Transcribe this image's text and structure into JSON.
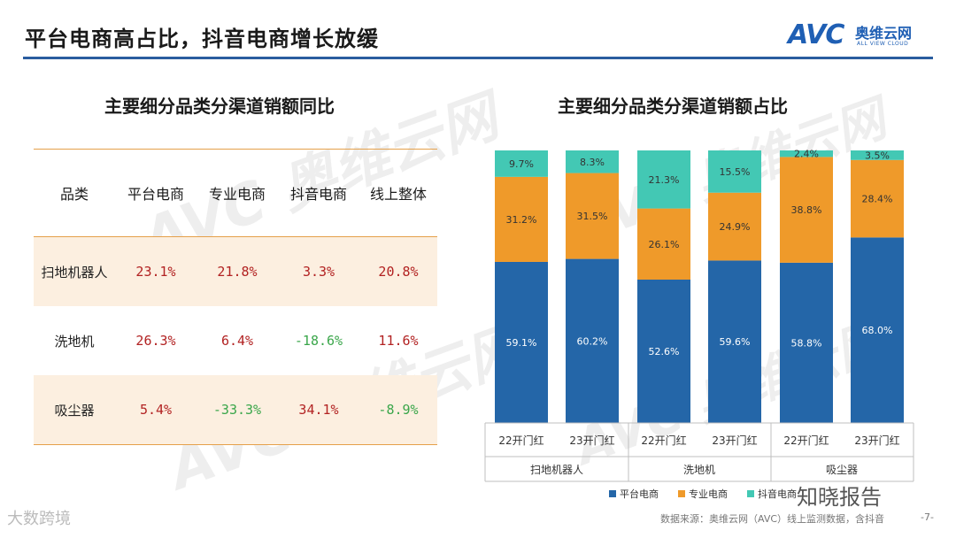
{
  "page": {
    "title": "平台电商高占比，抖音电商增长放缓",
    "logo_mark": "AVC",
    "logo_cn": "奥维云网",
    "logo_en": "ALL VIEW CLOUD",
    "footer_source": "数据来源：奥维云网（AVC）线上监测数据，含抖音",
    "page_number": "-7-",
    "watermark_left": "大数跨境",
    "watermark_right": "知晓报告"
  },
  "table": {
    "title": "主要细分品类分渠道销额同比",
    "headers": [
      "品类",
      "平台电商",
      "专业电商",
      "抖音电商",
      "线上整体"
    ],
    "rows": [
      {
        "category": "扫地机器人",
        "values": [
          "23.1%",
          "21.8%",
          "3.3%",
          "20.8%"
        ]
      },
      {
        "category": "洗地机",
        "values": [
          "26.3%",
          "6.4%",
          "-18.6%",
          "11.6%"
        ]
      },
      {
        "category": "吸尘器",
        "values": [
          "5.4%",
          "-33.3%",
          "34.1%",
          "-8.9%"
        ]
      }
    ]
  },
  "chart_data": {
    "type": "bar",
    "stacked": true,
    "percent": true,
    "title": "主要细分品类分渠道销额占比",
    "categories": [
      "22开门红",
      "23开门红",
      "22开门红",
      "23开门红",
      "22开门红",
      "23开门红"
    ],
    "groups": [
      "扫地机器人",
      "洗地机",
      "吸尘器"
    ],
    "series": [
      {
        "name": "平台电商",
        "color": "#2466a8",
        "values": [
          59.1,
          60.2,
          52.6,
          59.6,
          58.8,
          68.0
        ],
        "labels": [
          "59.1%",
          "60.2%",
          "52.6%",
          "59.6%",
          "58.8%",
          "68.0%"
        ]
      },
      {
        "name": "专业电商",
        "color": "#ef9a2a",
        "values": [
          31.2,
          31.5,
          26.1,
          24.9,
          38.8,
          28.4
        ],
        "labels": [
          "31.2%",
          "31.5%",
          "26.1%",
          "24.9%",
          "38.8%",
          "28.4%"
        ]
      },
      {
        "name": "抖音电商",
        "color": "#43c8b4",
        "values": [
          9.7,
          8.3,
          21.3,
          15.5,
          2.4,
          3.5
        ],
        "labels": [
          "9.7%",
          "8.3%",
          "21.3%",
          "15.5%",
          "2.4%",
          "3.5%"
        ]
      }
    ],
    "ylim": [
      0,
      100
    ],
    "legend": "bottom"
  }
}
